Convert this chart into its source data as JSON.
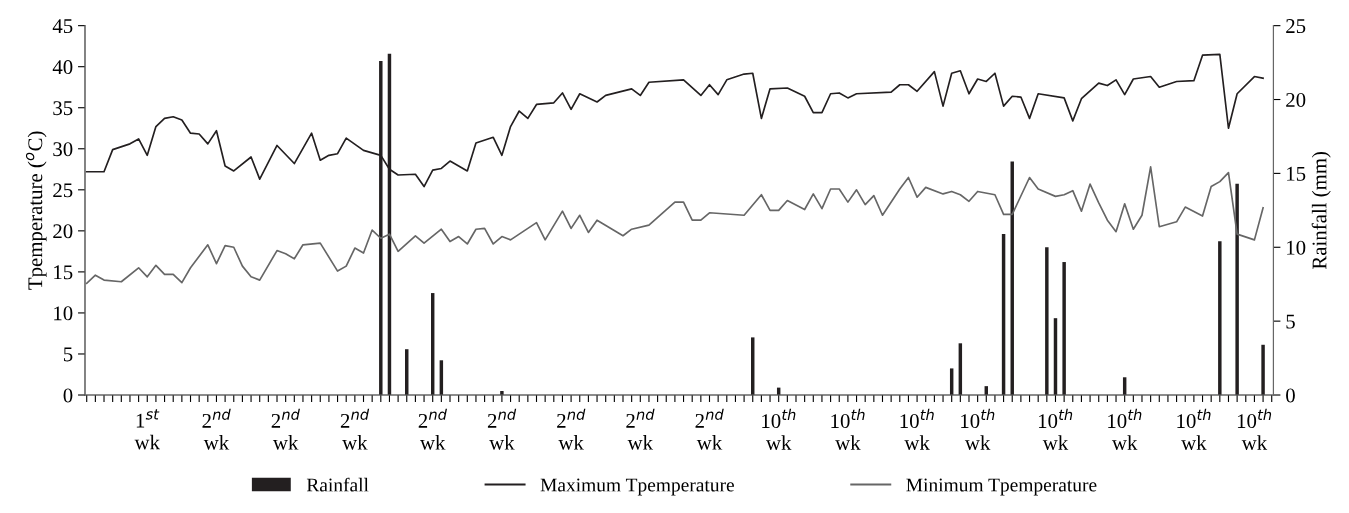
{
  "chart_data": {
    "type": "line",
    "ylabel": "Tpemperature ($^{o}$C)",
    "y2label": "Rainfall (mm)",
    "ylim": [
      0,
      45
    ],
    "yticks": [
      0,
      5,
      10,
      15,
      20,
      25,
      30,
      35,
      40,
      45
    ],
    "y2lim": [
      0,
      25
    ],
    "y2ticks": [
      0,
      5,
      10,
      15,
      20,
      25
    ],
    "categories": [
      null,
      null,
      null,
      null,
      null,
      null,
      null,
      "1$^{st}$\nwk",
      null,
      null,
      null,
      null,
      null,
      null,
      null,
      "2$^{nd}$\nwk",
      null,
      null,
      null,
      null,
      null,
      null,
      null,
      "2$^{nd}$\nwk",
      null,
      null,
      null,
      null,
      null,
      null,
      null,
      "2$^{nd}$\nwk",
      null,
      null,
      null,
      null,
      null,
      null,
      null,
      null,
      "2$^{nd}$\nwk",
      null,
      null,
      null,
      null,
      null,
      null,
      null,
      "2$^{nd}$\nwk",
      null,
      null,
      null,
      null,
      null,
      null,
      null,
      "2$^{nd}$\nwk",
      null,
      null,
      null,
      null,
      null,
      null,
      null,
      "2$^{nd}$\nwk",
      null,
      null,
      null,
      null,
      null,
      null,
      null,
      "2$^{nd}$\nwk",
      null,
      null,
      null,
      null,
      null,
      null,
      null,
      "10$^{th}$\nwk",
      null,
      null,
      null,
      null,
      null,
      null,
      null,
      "10$^{th}$\nwk",
      null,
      null,
      null,
      null,
      null,
      null,
      null,
      "10$^{th}$\nwk",
      null,
      null,
      null,
      null,
      null,
      null,
      "10$^{th}$\nwk",
      null,
      null,
      null,
      null,
      null,
      null,
      null,
      null,
      "10$^{th}$\nwk",
      null,
      null,
      null,
      null,
      null,
      null,
      null,
      "10$^{th}$\nwk",
      null,
      null,
      null,
      null,
      null,
      null,
      null,
      "10$^{th}$\nwk",
      null,
      null,
      null,
      null,
      null,
      null,
      "10$^{th}$\nwk",
      null,
      null
    ],
    "grid": false,
    "legend": "bottom",
    "marker": "none",
    "line_style": "solid",
    "series": [
      {
        "name": "Rainfall",
        "type": "bar",
        "axis": "y2",
        "color": "#231f20",
        "values": [
          null,
          null,
          null,
          null,
          null,
          null,
          null,
          null,
          null,
          null,
          null,
          null,
          null,
          null,
          null,
          null,
          null,
          null,
          null,
          null,
          null,
          null,
          null,
          null,
          null,
          null,
          null,
          null,
          null,
          null,
          null,
          null,
          null,
          null,
          22.6,
          23.1,
          null,
          3.1,
          null,
          null,
          6.9,
          2.35,
          null,
          null,
          null,
          null,
          null,
          null,
          0.27,
          null,
          null,
          null,
          null,
          null,
          null,
          null,
          null,
          null,
          null,
          null,
          null,
          null,
          null,
          null,
          null,
          null,
          null,
          null,
          null,
          null,
          null,
          null,
          null,
          null,
          null,
          null,
          null,
          3.9,
          null,
          null,
          0.5,
          null,
          null,
          null,
          null,
          null,
          null,
          null,
          null,
          null,
          null,
          null,
          null,
          null,
          null,
          null,
          null,
          null,
          null,
          null,
          1.8,
          3.5,
          null,
          null,
          0.6,
          null,
          10.9,
          15.8,
          null,
          null,
          null,
          10.0,
          5.2,
          9.0,
          null,
          null,
          null,
          null,
          null,
          null,
          1.2,
          null,
          null,
          null,
          null,
          null,
          null,
          null,
          null,
          null,
          null,
          10.4,
          null,
          14.3,
          null,
          null,
          3.4,
          null
        ]
      },
      {
        "name": "Maximum Tpemperature",
        "color": "#231f20",
        "values": [
          27.2,
          null,
          27.2,
          29.9,
          null,
          30.6,
          31.2,
          29.2,
          32.7,
          33.7,
          33.9,
          33.5,
          31.9,
          31.8,
          30.6,
          32.2,
          27.9,
          27.3,
          null,
          29.0,
          26.3,
          null,
          30.4,
          null,
          28.2,
          null,
          31.9,
          28.6,
          29.2,
          29.4,
          31.3,
          null,
          29.8,
          null,
          29.2,
          27.5,
          26.8,
          null,
          26.9,
          25.4,
          27.4,
          27.6,
          28.5,
          null,
          27.3,
          30.7,
          null,
          31.4,
          29.2,
          32.7,
          34.6,
          33.7,
          35.4,
          null,
          35.6,
          36.8,
          34.8,
          36.7,
          null,
          35.7,
          36.5,
          null,
          null,
          37.3,
          36.5,
          38.1,
          null,
          null,
          null,
          38.4,
          null,
          36.5,
          37.8,
          36.6,
          38.4,
          null,
          39.1,
          39.2,
          33.7,
          37.3,
          null,
          37.4,
          null,
          36.4,
          34.4,
          34.4,
          36.7,
          36.8,
          36.2,
          36.7,
          null,
          null,
          null,
          36.9,
          37.8,
          37.8,
          37.0,
          null,
          39.4,
          35.2,
          39.2,
          39.5,
          36.7,
          38.5,
          38.2,
          39.2,
          35.2,
          36.4,
          36.3,
          33.7,
          36.7,
          null,
          null,
          36.2,
          33.4,
          36.1,
          null,
          38.0,
          37.7,
          38.4,
          36.6,
          38.5,
          null,
          38.8,
          37.5,
          null,
          38.2,
          null,
          38.3,
          41.4,
          null,
          41.5,
          32.5,
          36.7,
          null,
          38.8,
          38.6,
          null
        ]
      },
      {
        "name": "Minimum Tpemperature",
        "color": "#666666",
        "values": [
          13.6,
          14.6,
          14.0,
          null,
          13.8,
          null,
          15.5,
          14.4,
          15.8,
          14.7,
          14.7,
          13.7,
          15.5,
          null,
          18.3,
          16.0,
          18.2,
          18.0,
          15.7,
          14.4,
          14.0,
          null,
          17.6,
          17.2,
          16.6,
          18.3,
          null,
          18.5,
          null,
          15.1,
          15.7,
          17.9,
          17.3,
          20.1,
          19.1,
          19.6,
          17.5,
          null,
          19.4,
          18.5,
          null,
          20.2,
          18.7,
          19.3,
          18.4,
          20.2,
          20.3,
          18.4,
          19.3,
          18.9,
          19.6,
          null,
          21.0,
          18.9,
          null,
          22.4,
          20.3,
          21.9,
          19.8,
          21.3,
          null,
          null,
          19.4,
          20.2,
          null,
          20.7,
          null,
          null,
          23.5,
          23.5,
          21.3,
          21.3,
          22.2,
          null,
          null,
          null,
          21.9,
          null,
          24.4,
          22.5,
          22.5,
          23.7,
          null,
          22.6,
          24.5,
          22.7,
          25.1,
          25.1,
          23.5,
          25.0,
          23.2,
          24.3,
          21.9,
          null,
          25.1,
          26.5,
          24.1,
          25.3,
          null,
          24.5,
          24.8,
          24.4,
          23.6,
          24.8,
          null,
          24.4,
          22.0,
          22.0,
          null,
          26.5,
          25.1,
          null,
          24.2,
          24.4,
          24.9,
          22.4,
          25.7,
          23.4,
          21.3,
          19.9,
          23.3,
          20.2,
          21.9,
          27.8,
          20.5,
          null,
          21.1,
          22.9,
          null,
          21.8,
          25.4,
          26.0,
          27.1,
          19.6,
          null,
          18.9,
          22.8,
          null
        ]
      }
    ]
  }
}
